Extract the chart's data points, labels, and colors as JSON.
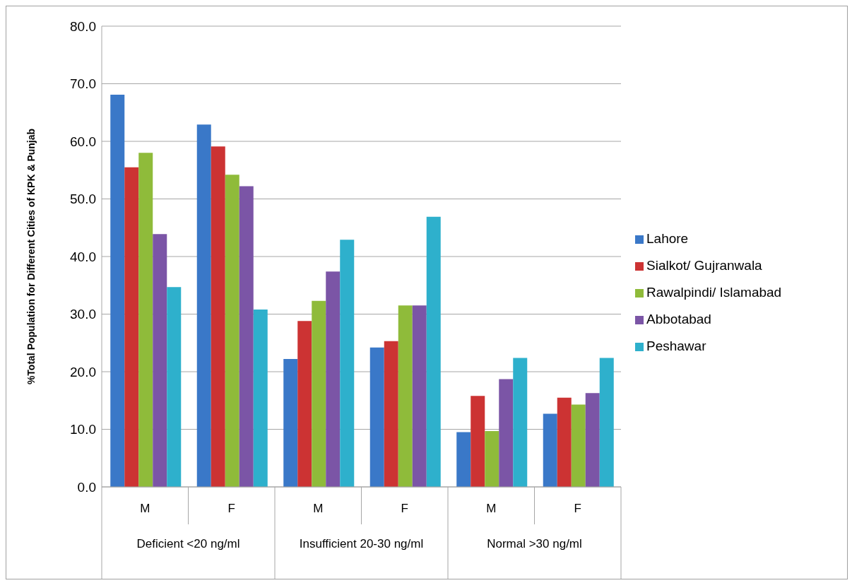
{
  "chart_data": {
    "type": "bar",
    "ylabel": "%Total Population for Different Cities of KPK & Punjab",
    "categories": [
      "M",
      "F",
      "M",
      "F",
      "M",
      "F"
    ],
    "annotations": [
      "Deficient <20 ng/ml",
      "Insufficient 20-30 ng/ml",
      "Normal >30 ng/ml"
    ],
    "series": [
      {
        "name": "Lahore",
        "color": "#3a78c8",
        "values": [
          68.1,
          62.9,
          22.2,
          24.2,
          9.5,
          12.7
        ]
      },
      {
        "name": "Sialkot/ Gujranwala",
        "color": "#cc3333",
        "values": [
          55.5,
          59.1,
          28.8,
          25.3,
          15.8,
          15.5
        ]
      },
      {
        "name": "Rawalpindi/ Islamabad",
        "color": "#8fbb3a",
        "values": [
          58.0,
          54.2,
          32.3,
          31.5,
          9.7,
          14.3
        ]
      },
      {
        "name": "Abbotabad",
        "color": "#7b55a6",
        "values": [
          43.9,
          52.2,
          37.4,
          31.5,
          18.7,
          16.3
        ]
      },
      {
        "name": "Peshawar",
        "color": "#2eb0cc",
        "values": [
          34.7,
          30.8,
          42.9,
          46.9,
          22.4,
          22.4
        ]
      }
    ],
    "ylim": [
      0,
      80
    ],
    "yticks": [
      {
        "value": 0,
        "label": "0.0"
      },
      {
        "value": 10,
        "label": "10.0"
      },
      {
        "value": 20,
        "label": "20.0"
      },
      {
        "value": 30,
        "label": "30.0"
      },
      {
        "value": 40,
        "label": "40.0"
      },
      {
        "value": 50,
        "label": "50.0"
      },
      {
        "value": 60,
        "label": "60.0"
      },
      {
        "value": 70,
        "label": "70.0"
      },
      {
        "value": 80,
        "label": "80.0"
      }
    ],
    "grid": "y",
    "legend": "right"
  }
}
